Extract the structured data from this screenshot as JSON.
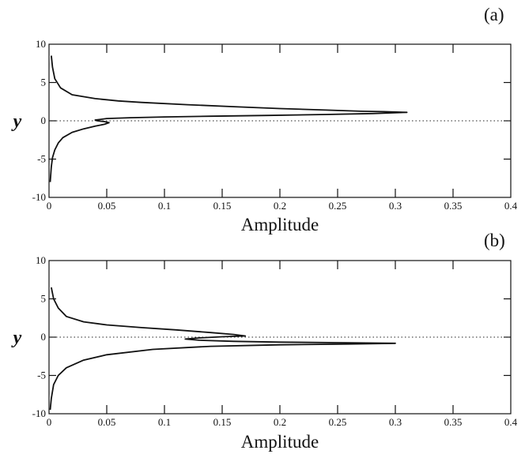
{
  "chart_data": [
    {
      "type": "line",
      "panel_label": "(a)",
      "xlabel": "Amplitude",
      "ylabel": "y",
      "xlim": [
        0,
        0.4
      ],
      "ylim": [
        -10,
        10
      ],
      "x_ticks": [
        "0",
        "0.05",
        "0.1",
        "0.15",
        "0.2",
        "0.25",
        "0.3",
        "0.35",
        "0.4"
      ],
      "y_ticks": [
        "-10",
        "-5",
        "0",
        "5",
        "10"
      ],
      "grid": false,
      "reference_line": {
        "y": 0,
        "style": "dotted"
      },
      "series": [
        {
          "values": [
            [
              0.002,
              8.5
            ],
            [
              0.003,
              7.0
            ],
            [
              0.005,
              5.5
            ],
            [
              0.01,
              4.3
            ],
            [
              0.02,
              3.4
            ],
            [
              0.04,
              2.9
            ],
            [
              0.06,
              2.6
            ],
            [
              0.08,
              2.4
            ],
            [
              0.12,
              2.1
            ],
            [
              0.16,
              1.85
            ],
            [
              0.2,
              1.6
            ],
            [
              0.24,
              1.4
            ],
            [
              0.27,
              1.25
            ],
            [
              0.29,
              1.2
            ],
            [
              0.31,
              1.1
            ],
            [
              0.28,
              0.95
            ],
            [
              0.24,
              0.82
            ],
            [
              0.19,
              0.7
            ],
            [
              0.14,
              0.6
            ],
            [
              0.1,
              0.5
            ],
            [
              0.07,
              0.4
            ],
            [
              0.05,
              0.3
            ],
            [
              0.045,
              0.2
            ],
            [
              0.04,
              0.1
            ],
            [
              0.042,
              0.0
            ],
            [
              0.048,
              -0.1
            ],
            [
              0.052,
              -0.25
            ],
            [
              0.048,
              -0.45
            ],
            [
              0.04,
              -0.7
            ],
            [
              0.03,
              -1.05
            ],
            [
              0.02,
              -1.5
            ],
            [
              0.012,
              -2.2
            ],
            [
              0.008,
              -2.9
            ],
            [
              0.005,
              -3.8
            ],
            [
              0.003,
              -4.8
            ],
            [
              0.002,
              -6.0
            ],
            [
              0.001,
              -8.0
            ]
          ]
        }
      ]
    },
    {
      "type": "line",
      "panel_label": "(b)",
      "xlabel": "Amplitude",
      "ylabel": "y",
      "xlim": [
        0,
        0.4
      ],
      "ylim": [
        -10,
        10
      ],
      "x_ticks": [
        "0",
        "0.05",
        "0.1",
        "0.15",
        "0.2",
        "0.25",
        "0.3",
        "0.35",
        "0.4"
      ],
      "y_ticks": [
        "-10",
        "-5",
        "0",
        "5",
        "10"
      ],
      "grid": false,
      "reference_line": {
        "y": 0,
        "style": "dotted"
      },
      "series": [
        {
          "values": [
            [
              0.002,
              6.5
            ],
            [
              0.004,
              5.0
            ],
            [
              0.008,
              3.8
            ],
            [
              0.015,
              2.7
            ],
            [
              0.03,
              2.0
            ],
            [
              0.05,
              1.6
            ],
            [
              0.08,
              1.25
            ],
            [
              0.11,
              0.95
            ],
            [
              0.14,
              0.6
            ],
            [
              0.16,
              0.35
            ],
            [
              0.17,
              0.15
            ],
            [
              0.15,
              0.05
            ],
            [
              0.13,
              -0.1
            ],
            [
              0.118,
              -0.25
            ],
            [
              0.13,
              -0.4
            ],
            [
              0.16,
              -0.55
            ],
            [
              0.2,
              -0.65
            ],
            [
              0.25,
              -0.72
            ],
            [
              0.3,
              -0.8
            ],
            [
              0.26,
              -0.9
            ],
            [
              0.2,
              -1.0
            ],
            [
              0.14,
              -1.2
            ],
            [
              0.09,
              -1.6
            ],
            [
              0.05,
              -2.3
            ],
            [
              0.03,
              -3.0
            ],
            [
              0.015,
              -4.0
            ],
            [
              0.008,
              -5.0
            ],
            [
              0.004,
              -6.2
            ],
            [
              0.002,
              -8.0
            ],
            [
              0.001,
              -9.5
            ]
          ]
        }
      ]
    }
  ]
}
